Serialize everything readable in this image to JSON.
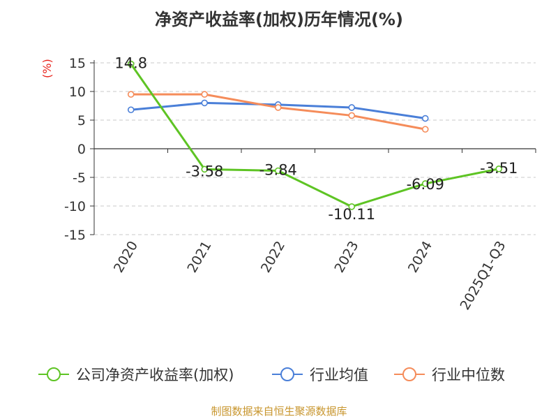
{
  "title": "净资产收益率(加权)历年情况(%)",
  "unit_label": "(%)",
  "footer": "制图数据来自恒生聚源数据库",
  "chart_data": {
    "type": "line",
    "title": "净资产收益率(加权)历年情况(%)",
    "ylabel": "(%)",
    "xlabel": "",
    "categories": [
      "2020",
      "2021",
      "2022",
      "2023",
      "2024",
      "2025Q1-Q3"
    ],
    "ylim": [
      -15,
      15
    ],
    "yticks": [
      15,
      10,
      5,
      0,
      -5,
      -10,
      -15
    ],
    "grid": true,
    "legend_position": "bottom",
    "series": [
      {
        "name": "公司净资产收益率(加权)",
        "color": "#5ec424",
        "values": [
          14.8,
          -3.58,
          -3.84,
          -10.11,
          -6.09,
          -3.51
        ],
        "labels": [
          "14.8",
          "-3.58",
          "-3.84",
          "-10.11",
          "-6.09",
          "-3.51"
        ]
      },
      {
        "name": "行业均值",
        "color": "#4a7fd8",
        "values": [
          6.8,
          8.0,
          7.7,
          7.2,
          5.3,
          null
        ]
      },
      {
        "name": "行业中位数",
        "color": "#f58c5a",
        "values": [
          9.5,
          9.5,
          7.2,
          5.8,
          3.4,
          null
        ]
      }
    ]
  }
}
